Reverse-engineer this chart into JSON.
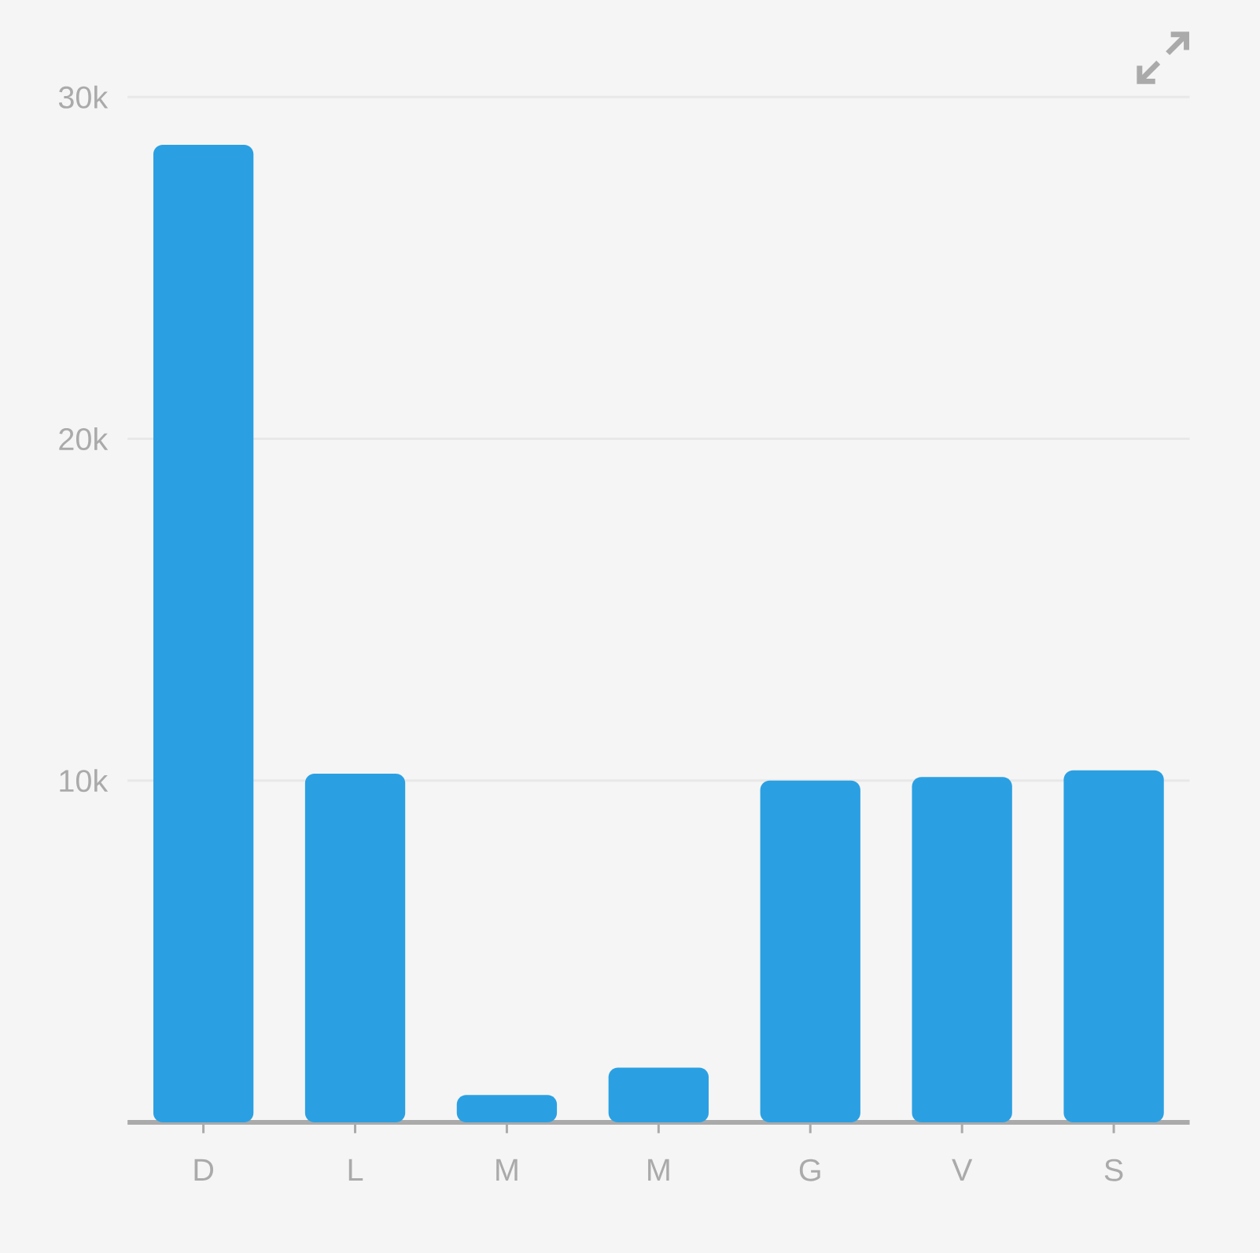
{
  "chart_data": {
    "type": "bar",
    "categories": [
      "D",
      "L",
      "M",
      "M",
      "G",
      "V",
      "S"
    ],
    "values": [
      28600,
      10200,
      800,
      1600,
      10000,
      10100,
      10300
    ],
    "color": "#2aa0e3",
    "ylim": [
      0,
      30000
    ],
    "yticks": [
      {
        "value": 10000,
        "label": "10k"
      },
      {
        "value": 20000,
        "label": "20k"
      },
      {
        "value": 30000,
        "label": "30k"
      }
    ],
    "grid": "y"
  }
}
